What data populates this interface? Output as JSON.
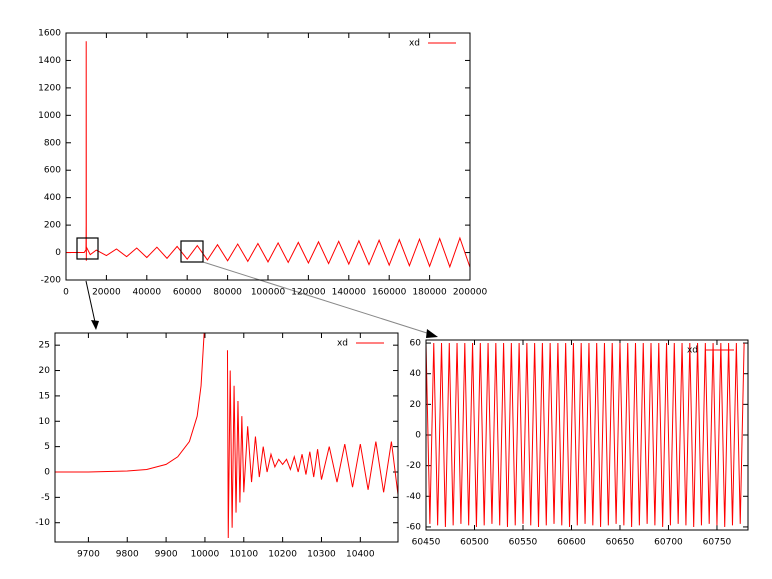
{
  "chart_data": [
    {
      "type": "line",
      "legend": "upper right",
      "x": [
        0,
        5000,
        9000,
        9900,
        9980,
        10000,
        10060,
        10100,
        12000,
        15000,
        20000,
        25000,
        30000,
        35000,
        40000,
        45000,
        50000,
        55000,
        60000,
        65000,
        70000,
        75000,
        80000,
        85000,
        90000,
        95000,
        100000,
        105000,
        110000,
        115000,
        120000,
        125000,
        130000,
        135000,
        140000,
        145000,
        150000,
        155000,
        160000,
        165000,
        170000,
        175000,
        180000,
        185000,
        190000,
        195000,
        200000
      ],
      "series": [
        {
          "name": "xd",
          "color": "#ff0000",
          "values": [
            0,
            0,
            0,
            20,
            200,
            1540,
            -60,
            40,
            -15,
            18,
            -22,
            26,
            -30,
            33,
            -36,
            39,
            -42,
            45,
            -48,
            51,
            -54,
            57,
            -60,
            62,
            -64,
            66,
            -68,
            70,
            -72,
            74,
            -76,
            78,
            -80,
            82,
            -84,
            86,
            -88,
            90,
            -92,
            94,
            -96,
            98,
            -100,
            102,
            -104,
            106,
            -108
          ]
        }
      ],
      "xlim": [
        0,
        200000
      ],
      "ylim": [
        -200,
        1600
      ],
      "xticks": [
        0,
        20000,
        40000,
        60000,
        80000,
        100000,
        120000,
        140000,
        160000,
        180000,
        200000
      ],
      "yticks": [
        -200,
        0,
        200,
        400,
        600,
        800,
        1000,
        1200,
        1400,
        1600
      ]
    },
    {
      "type": "line",
      "legend": "upper right",
      "x": [
        9614,
        9700,
        9800,
        9850,
        9900,
        9930,
        9960,
        9980,
        9990,
        9998,
        10030,
        10058,
        10060,
        10065,
        10070,
        10075,
        10080,
        10085,
        10090,
        10095,
        10100,
        10110,
        10120,
        10130,
        10140,
        10150,
        10160,
        10170,
        10180,
        10190,
        10200,
        10210,
        10220,
        10230,
        10240,
        10250,
        10260,
        10270,
        10280,
        10290,
        10300,
        10320,
        10340,
        10360,
        10380,
        10400,
        10420,
        10440,
        10460,
        10480,
        10497
      ],
      "series": [
        {
          "name": "xd",
          "color": "#ff0000",
          "values": [
            0,
            0,
            0.2,
            0.5,
            1.5,
            3,
            6,
            11,
            17,
            27.4,
            null,
            24,
            -13,
            20,
            -11,
            17,
            -8,
            14,
            -6,
            11,
            -4,
            9,
            -2,
            7,
            -1,
            5,
            0,
            3.5,
            1,
            2.5,
            1.5,
            2.5,
            0.5,
            3,
            0,
            3.5,
            -0.5,
            4,
            -1,
            4.5,
            -1.5,
            5,
            -2,
            5.5,
            -3,
            5.5,
            -3.5,
            6,
            -4,
            6,
            -4.5
          ]
        }
      ],
      "xlim": [
        9614,
        10497
      ],
      "ylim": [
        -13.8,
        27.4
      ],
      "xticks": [
        9700,
        9800,
        9900,
        10000,
        10100,
        10200,
        10300,
        10400
      ],
      "yticks": [
        -10,
        -5,
        0,
        5,
        10,
        15,
        20,
        25
      ]
    },
    {
      "type": "line",
      "legend": "upper right",
      "x": [
        60450,
        60454,
        60458,
        60462,
        60466,
        60470,
        60474,
        60478,
        60482,
        60486,
        60490,
        60494,
        60498,
        60502,
        60506,
        60510,
        60514,
        60518,
        60522,
        60526,
        60530,
        60534,
        60538,
        60542,
        60546,
        60550,
        60554,
        60558,
        60562,
        60566,
        60570,
        60574,
        60578,
        60582,
        60586,
        60590,
        60594,
        60598,
        60602,
        60606,
        60610,
        60614,
        60618,
        60622,
        60626,
        60630,
        60634,
        60638,
        60642,
        60646,
        60650,
        60654,
        60658,
        60662,
        60666,
        60670,
        60674,
        60678,
        60682,
        60686,
        60690,
        60694,
        60698,
        60702,
        60706,
        60710,
        60714,
        60718,
        60722,
        60726,
        60730,
        60734,
        60738,
        60742,
        60746,
        60750,
        60754,
        60758,
        60762,
        60766,
        60770,
        60774,
        60778
      ],
      "series": [
        {
          "name": "xd",
          "color": "#ff0000",
          "values": [
            60,
            -58,
            60,
            -59,
            60,
            -60,
            60,
            -59,
            60,
            -58,
            60,
            -59,
            60,
            -60,
            60,
            -59,
            60,
            -58,
            60,
            -59,
            60,
            -60,
            60,
            -59,
            60,
            -58,
            60,
            -59,
            60,
            -60,
            60,
            -59,
            60,
            -58,
            60,
            -59,
            60,
            -60,
            60,
            -59,
            60,
            -58,
            60,
            -59,
            60,
            -60,
            60,
            -59,
            60,
            -58,
            60,
            -59,
            60,
            -60,
            60,
            -59,
            60,
            -58,
            60,
            -59,
            60,
            -60,
            60,
            -59,
            60,
            -58,
            60,
            -59,
            60,
            -60,
            60,
            -59,
            60,
            -58,
            60,
            -59,
            60,
            -60,
            60,
            -59,
            60,
            -58,
            60
          ]
        }
      ],
      "xlim": [
        60450,
        60782
      ],
      "ylim": [
        -62,
        62
      ],
      "xticks": [
        60450,
        60500,
        60550,
        60600,
        60650,
        60700,
        60750
      ],
      "yticks": [
        -60,
        -40,
        -20,
        0,
        20,
        40,
        60
      ]
    }
  ]
}
